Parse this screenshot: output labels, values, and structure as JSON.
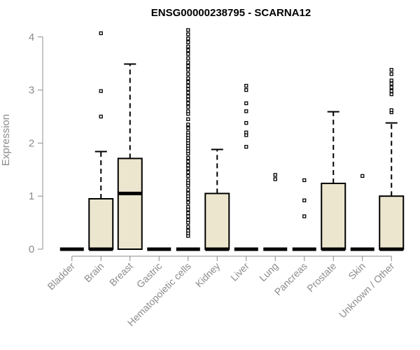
{
  "chart_data": {
    "type": "boxplot",
    "title": "ENSG00000238795 - SCARNA12",
    "xlabel": "",
    "ylabel": "Expression",
    "ylim": [
      0,
      4.2
    ],
    "yticks": [
      0,
      1,
      2,
      3,
      4
    ],
    "grid": false,
    "box_fill": "#ede6cf",
    "box_stroke": "#000000",
    "categories": [
      "Bladder",
      "Brain",
      "Breast",
      "Gastric",
      "Hematopoietic cells",
      "Kidney",
      "Liver",
      "Lung",
      "Pancreas",
      "Prostate",
      "Skin",
      "Unknown / Other"
    ],
    "boxes": [
      {
        "category": "Bladder",
        "q1": 0,
        "median": 0,
        "q3": 0,
        "whisker_low": 0,
        "whisker_high": 0,
        "outliers": []
      },
      {
        "category": "Brain",
        "q1": 0,
        "median": 0,
        "q3": 0.95,
        "whisker_low": 0,
        "whisker_high": 1.84,
        "outliers": [
          2.5,
          2.98,
          4.07
        ]
      },
      {
        "category": "Breast",
        "q1": 0,
        "median": 1.05,
        "q3": 1.71,
        "whisker_low": 0,
        "whisker_high": 3.49,
        "outliers": []
      },
      {
        "category": "Gastric",
        "q1": 0,
        "median": 0,
        "q3": 0,
        "whisker_low": 0,
        "whisker_high": 0,
        "outliers": []
      },
      {
        "category": "Hematopoietic cells",
        "q1": 0,
        "median": 0,
        "q3": 0,
        "whisker_low": 0,
        "whisker_high": 0,
        "outliers": [
          0.25,
          0.3,
          0.35,
          0.42,
          0.5,
          0.55,
          0.62,
          0.68,
          0.75,
          0.8,
          0.88,
          0.95,
          1.0,
          1.05,
          1.12,
          1.2,
          1.25,
          1.3,
          1.38,
          1.45,
          1.52,
          1.58,
          1.65,
          1.72,
          1.8,
          1.85,
          1.9,
          1.95,
          2.0,
          2.05,
          2.1,
          2.15,
          2.2,
          2.28,
          2.35,
          2.45,
          2.55,
          2.6,
          2.68,
          2.75,
          2.82,
          2.88,
          2.95,
          3.02,
          3.08,
          3.15,
          3.22,
          3.3,
          3.38,
          3.45,
          3.52,
          3.6,
          3.68,
          3.75,
          3.82,
          3.9,
          3.97,
          4.05,
          4.13
        ]
      },
      {
        "category": "Kidney",
        "q1": 0,
        "median": 0,
        "q3": 1.05,
        "whisker_low": 0,
        "whisker_high": 1.88,
        "outliers": []
      },
      {
        "category": "Liver",
        "q1": 0,
        "median": 0,
        "q3": 0,
        "whisker_low": 0,
        "whisker_high": 0,
        "outliers": [
          1.93,
          2.15,
          2.2,
          2.38,
          2.6,
          2.75,
          3.0,
          3.08
        ]
      },
      {
        "category": "Lung",
        "q1": 0,
        "median": 0,
        "q3": 0,
        "whisker_low": 0,
        "whisker_high": 0,
        "outliers": [
          1.32,
          1.4
        ]
      },
      {
        "category": "Pancreas",
        "q1": 0,
        "median": 0,
        "q3": 0,
        "whisker_low": 0,
        "whisker_high": 0,
        "outliers": [
          0.62,
          0.92,
          1.3
        ]
      },
      {
        "category": "Prostate",
        "q1": 0,
        "median": 0,
        "q3": 1.24,
        "whisker_low": 0,
        "whisker_high": 2.59,
        "outliers": []
      },
      {
        "category": "Skin",
        "q1": 0,
        "median": 0,
        "q3": 0,
        "whisker_low": 0,
        "whisker_high": 0,
        "outliers": [
          1.38
        ]
      },
      {
        "category": "Unknown / Other",
        "q1": 0,
        "median": 0,
        "q3": 1.0,
        "whisker_low": 0,
        "whisker_high": 2.38,
        "outliers": [
          2.58,
          2.62,
          2.92,
          2.98,
          3.05,
          3.12,
          3.18,
          3.3,
          3.38
        ]
      }
    ]
  }
}
